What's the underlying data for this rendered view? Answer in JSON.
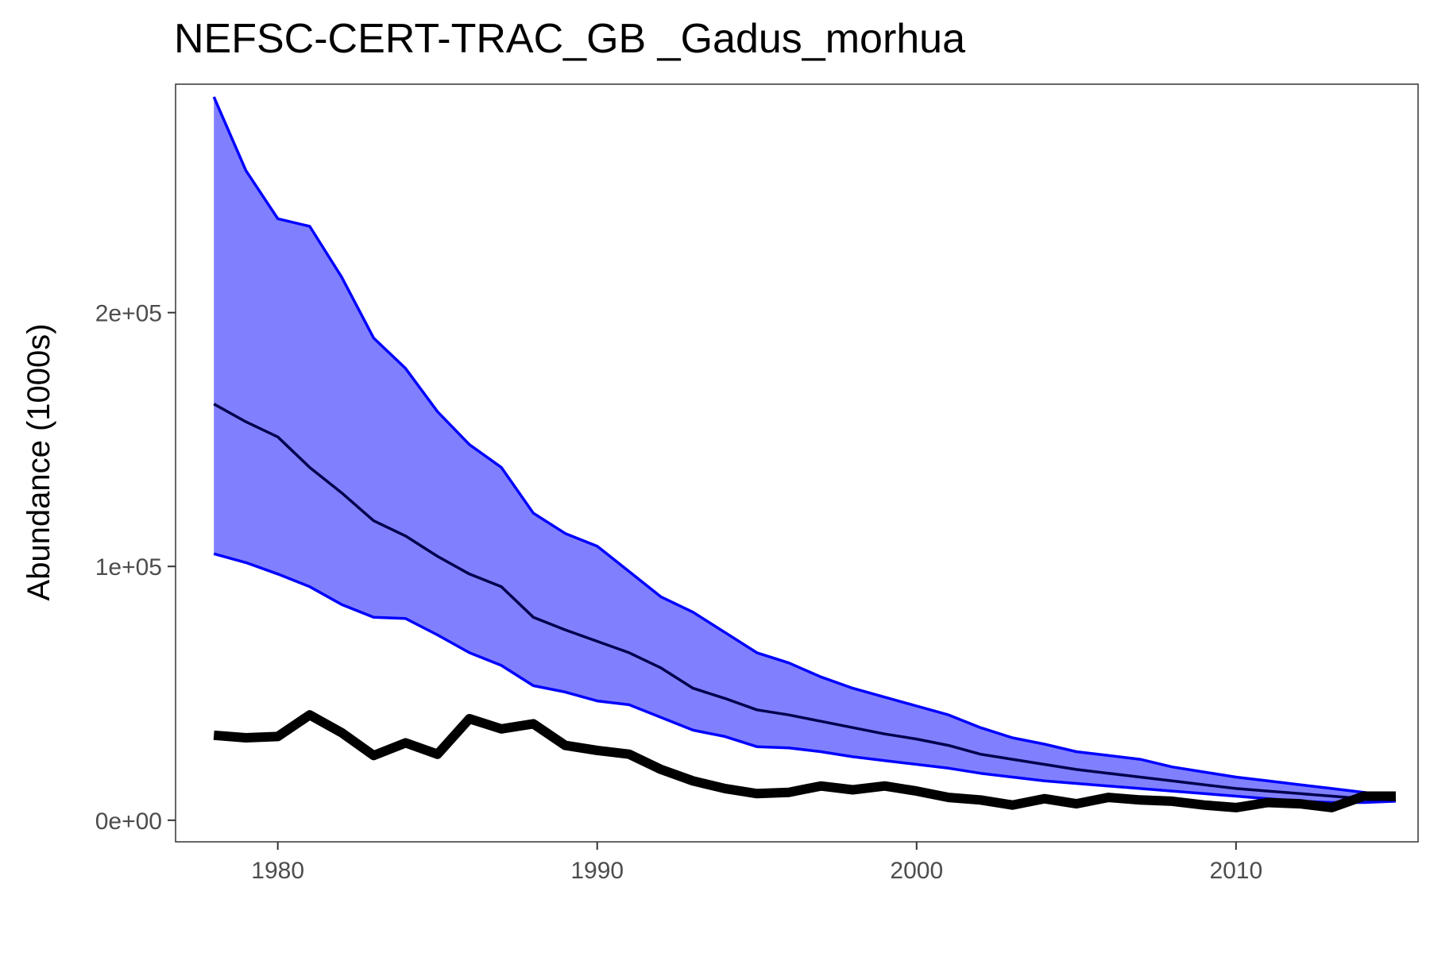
{
  "chart_data": {
    "type": "line",
    "title": "NEFSC-CERT-TRAC_GB _Gadus_morhua",
    "xlabel": "",
    "ylabel": "Abundance (1000s)",
    "xlim": [
      1976.8,
      2015.7
    ],
    "ylim": [
      -8500,
      290000
    ],
    "x_ticks": [
      1980,
      1990,
      2000,
      2010
    ],
    "x_tick_labels": [
      "1980",
      "1990",
      "2000",
      "2010"
    ],
    "y_ticks": [
      0,
      100000,
      200000
    ],
    "y_tick_labels": [
      "0e+00",
      "1e+05",
      "2e+05"
    ],
    "grid": false,
    "legend": "none",
    "x": [
      1978,
      1979,
      1980,
      1981,
      1982,
      1983,
      1984,
      1985,
      1986,
      1987,
      1988,
      1989,
      1990,
      1991,
      1992,
      1993,
      1994,
      1995,
      1996,
      1997,
      1998,
      1999,
      2000,
      2001,
      2002,
      2003,
      2004,
      2005,
      2006,
      2007,
      2008,
      2009,
      2010,
      2011,
      2012,
      2013,
      2014,
      2015
    ],
    "series": [
      {
        "role": "upper",
        "color": "#0000ff",
        "values": [
          285000,
          256000,
          237000,
          234000,
          214000,
          190000,
          178000,
          161000,
          148000,
          139000,
          121000,
          113000,
          108000,
          98000,
          88000,
          82000,
          74000,
          66000,
          62000,
          56500,
          52000,
          48500,
          45000,
          41500,
          36500,
          32500,
          30000,
          27000,
          25500,
          24000,
          21000,
          19000,
          17000,
          15500,
          14000,
          12500,
          11000,
          9500
        ]
      },
      {
        "role": "middle",
        "color": "#00004d",
        "values": [
          164000,
          157000,
          151000,
          139000,
          129000,
          118000,
          112000,
          104000,
          97000,
          92000,
          80000,
          75000,
          70500,
          66000,
          60000,
          52000,
          48000,
          43500,
          41500,
          39000,
          36500,
          34000,
          32000,
          29500,
          26000,
          24000,
          22000,
          20000,
          18500,
          17000,
          15500,
          14000,
          12500,
          11500,
          10500,
          9500,
          8500,
          8000
        ]
      },
      {
        "role": "lower",
        "color": "#0000ff",
        "values": [
          105000,
          101500,
          97000,
          92000,
          85000,
          80000,
          79500,
          73000,
          66000,
          61000,
          53000,
          50500,
          47000,
          45500,
          40500,
          35500,
          33000,
          29000,
          28500,
          27000,
          25000,
          23500,
          22000,
          20500,
          18500,
          17000,
          15500,
          14500,
          13500,
          12500,
          11500,
          10500,
          9500,
          8500,
          7500,
          7000,
          7000,
          7500
        ]
      },
      {
        "role": "observed",
        "color": "#000000",
        "values": [
          33500,
          32500,
          33000,
          41500,
          34500,
          25500,
          30500,
          26000,
          40000,
          36000,
          38000,
          29500,
          27500,
          26000,
          20000,
          15500,
          12500,
          10500,
          11000,
          13500,
          12000,
          13500,
          11500,
          9000,
          8000,
          6000,
          8500,
          6500,
          9000,
          8000,
          7500,
          6000,
          5000,
          7000,
          6500,
          5000,
          9500,
          9500
        ]
      }
    ],
    "ribbon_fill": "#8080ff"
  }
}
